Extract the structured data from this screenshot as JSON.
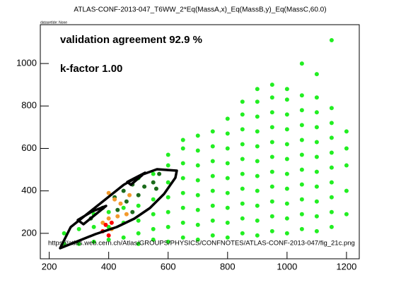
{
  "chart_data": {
    "type": "scatter",
    "title": "ATLAS-CONF-2013-047_T6WW_2*Eq(MassA,x)_Eq(MassB,y)_Eq(MassC,60.0)",
    "subtitle": "datasetIde: None",
    "annotations": [
      "validation agreement 92.9 %",
      "k-factor 1.00",
      "https://atlas.web.cern.ch/Atlas/GROUPS/PHYSICS/CONFNOTES/ATLAS-CONF-2013-047/fig_21c.png"
    ],
    "xlim": [
      170,
      1243
    ],
    "ylim": [
      80,
      1183
    ],
    "xticks": [
      200,
      400,
      600,
      800,
      1000,
      1200
    ],
    "yticks": [
      200,
      400,
      600,
      800,
      1000
    ],
    "series": [
      {
        "color": "#22ee22",
        "x": [
          250,
          250,
          300,
          300,
          350,
          350,
          350,
          400,
          400,
          400,
          450,
          450,
          450,
          500,
          500,
          500,
          500,
          500,
          550,
          550,
          550,
          550,
          550,
          600,
          600,
          600,
          600,
          600,
          600,
          600,
          650,
          650,
          650,
          650,
          650,
          650,
          650,
          650,
          700,
          700,
          700,
          700,
          700,
          700,
          700,
          700,
          750,
          750,
          750,
          750,
          750,
          750,
          750,
          750,
          800,
          800,
          800,
          800,
          800,
          800,
          800,
          800,
          800,
          850,
          850,
          850,
          850,
          850,
          850,
          850,
          850,
          850,
          850,
          900,
          900,
          900,
          900,
          900,
          900,
          900,
          900,
          900,
          900,
          900,
          950,
          950,
          950,
          950,
          950,
          950,
          950,
          950,
          950,
          950,
          950,
          1000,
          1000,
          1000,
          1000,
          1000,
          1000,
          1000,
          1000,
          1000,
          1000,
          1000,
          1050,
          1050,
          1050,
          1050,
          1050,
          1050,
          1050,
          1050,
          1050,
          1050,
          1050,
          1100,
          1100,
          1100,
          1100,
          1100,
          1100,
          1100,
          1100,
          1100,
          1100,
          1100,
          1150,
          1150,
          1150,
          1150,
          1150,
          1150,
          1150,
          1150,
          1150,
          1150,
          1200,
          1200,
          1200,
          1200,
          1200
        ],
        "values": [
          150,
          200,
          150,
          220,
          160,
          230,
          290,
          170,
          230,
          300,
          180,
          250,
          320,
          150,
          200,
          260,
          330,
          460,
          170,
          220,
          290,
          360,
          480,
          160,
          230,
          300,
          370,
          440,
          520,
          570,
          180,
          250,
          320,
          390,
          460,
          530,
          600,
          640,
          170,
          240,
          310,
          380,
          450,
          520,
          590,
          660,
          190,
          260,
          330,
          400,
          470,
          540,
          610,
          680,
          180,
          250,
          320,
          390,
          460,
          530,
          600,
          670,
          740,
          200,
          270,
          340,
          410,
          480,
          550,
          620,
          690,
          760,
          820,
          190,
          260,
          330,
          400,
          470,
          540,
          610,
          680,
          750,
          820,
          880,
          210,
          280,
          350,
          420,
          490,
          560,
          630,
          700,
          770,
          840,
          900,
          200,
          270,
          340,
          410,
          480,
          550,
          620,
          690,
          760,
          830,
          880,
          220,
          290,
          360,
          430,
          500,
          570,
          640,
          710,
          780,
          850,
          1000,
          210,
          280,
          350,
          420,
          490,
          560,
          630,
          700,
          770,
          840,
          950,
          230,
          300,
          370,
          440,
          510,
          580,
          650,
          720,
          790,
          1110,
          290,
          400,
          520,
          600,
          680
        ]
      },
      {
        "color": "#1b6b1b",
        "x": [
          420,
          450,
          480,
          500,
          520,
          550,
          560,
          570,
          380,
          430,
          460,
          340,
          480
        ],
        "values": [
          370,
          400,
          430,
          380,
          420,
          440,
          410,
          480,
          320,
          310,
          350,
          270,
          300
        ]
      },
      {
        "color": "#f39a2c",
        "x": [
          400,
          420,
          440,
          430,
          460,
          400,
          470,
          410,
          380
        ],
        "values": [
          390,
          360,
          340,
          280,
          290,
          270,
          380,
          220,
          250
        ]
      },
      {
        "color": "#ff0000",
        "x": [
          380,
          390,
          410,
          400
        ],
        "values": [
          210,
          240,
          250,
          190
        ]
      }
    ]
  }
}
